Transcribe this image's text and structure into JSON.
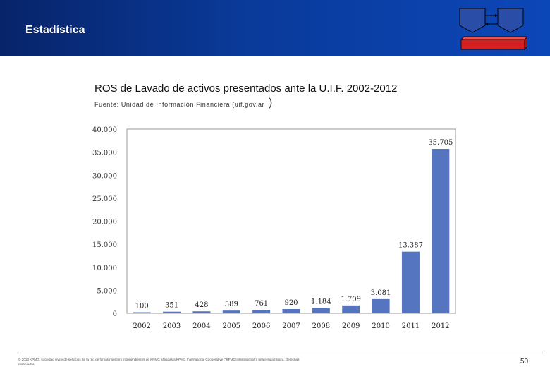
{
  "header": {
    "title": "Estadística"
  },
  "colors": {
    "header_bg": "#0a3a9a",
    "bar": "#5575c0",
    "logo_box": "#2a4da8",
    "logo_bar": "#d42020"
  },
  "chart_data": {
    "type": "bar",
    "title": "ROS de Lavado de activos presentados ante la U.I.F. 2002-2012",
    "subtitle": "Fuente: Unidad de Información Financiera (uif.gov.ar",
    "categories": [
      "2002",
      "2003",
      "2004",
      "2005",
      "2006",
      "2007",
      "2008",
      "2009",
      "2010",
      "2011",
      "2012"
    ],
    "values": [
      100,
      351,
      428,
      589,
      761,
      920,
      1184,
      1709,
      3081,
      13387,
      35705
    ],
    "value_labels": [
      "100",
      "351",
      "428",
      "589",
      "761",
      "920",
      "1.184",
      "1.709",
      "3.081",
      "13.387",
      "35.705"
    ],
    "y_ticks": [
      0,
      5000,
      10000,
      15000,
      20000,
      25000,
      30000,
      35000,
      40000
    ],
    "y_tick_labels": [
      "0",
      "5.000",
      "10.000",
      "15.000",
      "20.000",
      "25.000",
      "30.000",
      "35.000",
      "40.000"
    ],
    "ylim": [
      0,
      40000
    ],
    "xlabel": "",
    "ylabel": "",
    "grid": false
  },
  "footer": {
    "note": "© 2013 KPMG, sociedad civil y de servicios de la red de firmas miembro independientes de KPMG afiliadas a KPMG International Cooperative (\"KPMG International\"), una entidad suiza. Derechos reservados.",
    "page_number": "50"
  }
}
